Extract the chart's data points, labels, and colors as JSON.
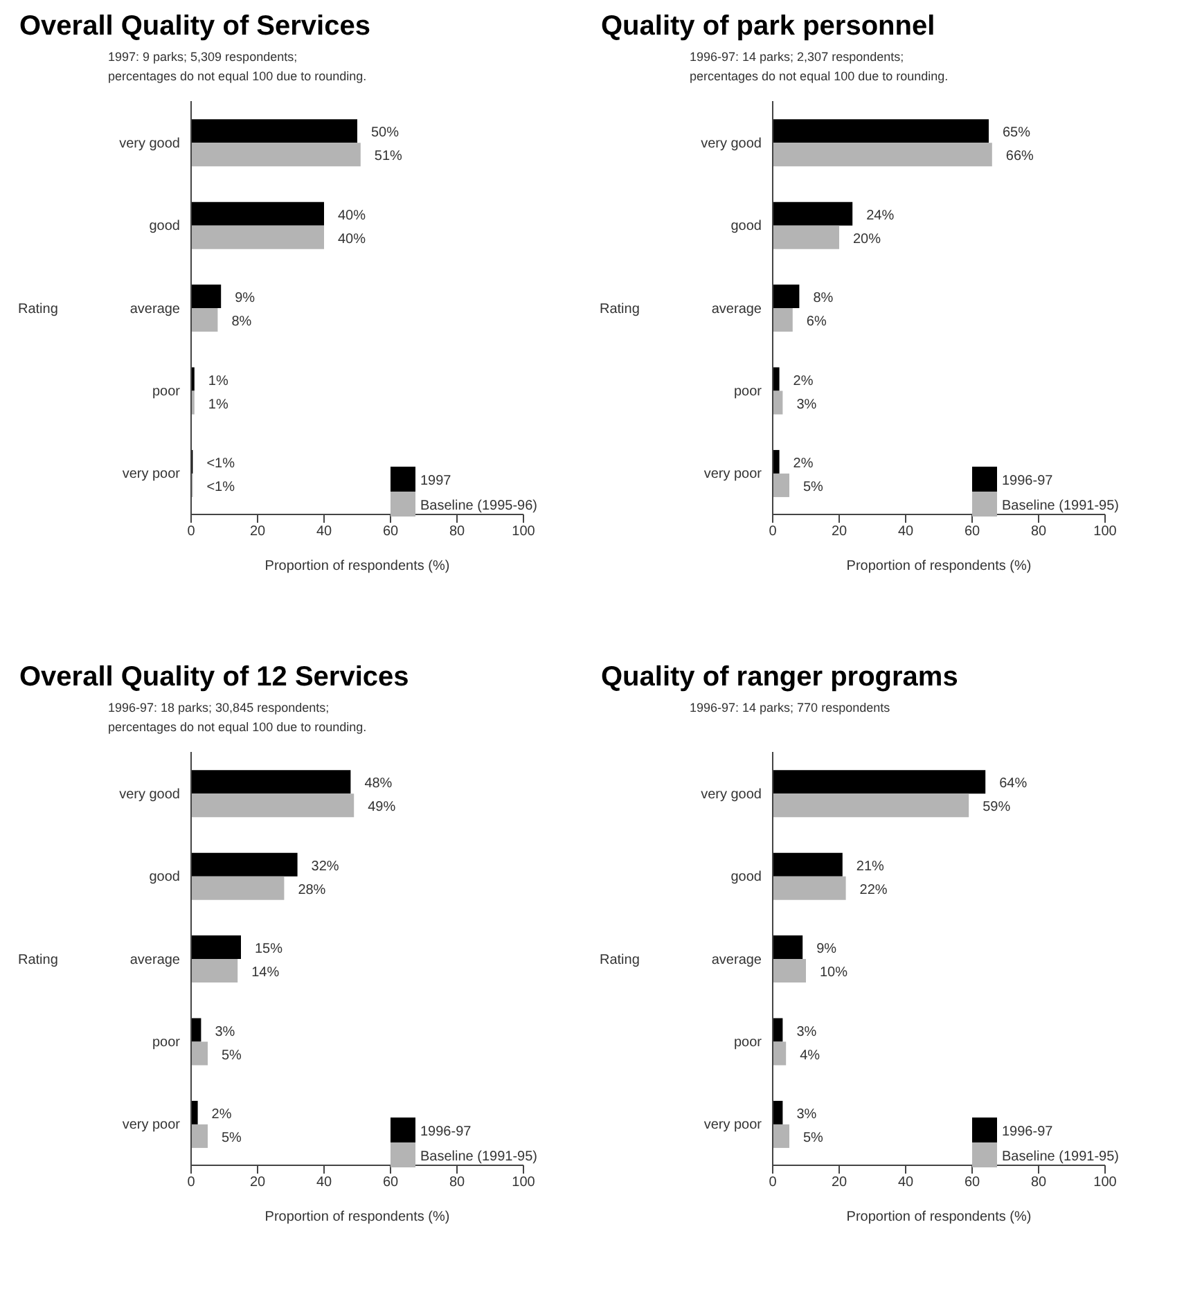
{
  "chart_data": [
    {
      "type": "bar",
      "orientation": "horizontal",
      "title": "Overall Quality of Services",
      "subtitle": "1997:  9 parks; 5,309 respondents;\npercentages do not equal 100 due to rounding.",
      "xlabel": "Proportion of respondents (%)",
      "ylabel": "Rating",
      "categories": [
        "very good",
        "good",
        "average",
        "poor",
        "very poor"
      ],
      "series": [
        {
          "name": "1997",
          "color": "#000000",
          "values": [
            50,
            40,
            9,
            1,
            0.5
          ],
          "value_labels": [
            "50%",
            "40%",
            "9%",
            "1%",
            "<1%"
          ]
        },
        {
          "name": "Baseline (1995-96)",
          "color": "#b4b4b4",
          "values": [
            51,
            40,
            8,
            1,
            0.5
          ],
          "value_labels": [
            "51%",
            "40%",
            "8%",
            "1%",
            "<1%"
          ]
        }
      ],
      "xlim": [
        0,
        100
      ],
      "xticks": [
        0,
        20,
        40,
        60,
        80,
        100
      ],
      "grid": false,
      "legend": "bottom right"
    },
    {
      "type": "bar",
      "orientation": "horizontal",
      "title": "Quality of park personnel",
      "subtitle": "1996-97:  14 parks; 2,307 respondents;\npercentages do not equal 100 due to rounding.",
      "xlabel": "Proportion of respondents (%)",
      "ylabel": "Rating",
      "categories": [
        "very good",
        "good",
        "average",
        "poor",
        "very poor"
      ],
      "series": [
        {
          "name": "1996-97",
          "color": "#000000",
          "values": [
            65,
            24,
            8,
            2,
            2
          ],
          "value_labels": [
            "65%",
            "24%",
            "8%",
            "2%",
            "2%"
          ]
        },
        {
          "name": "Baseline (1991-95)",
          "color": "#b4b4b4",
          "values": [
            66,
            20,
            6,
            3,
            5
          ],
          "value_labels": [
            "66%",
            "20%",
            "6%",
            "3%",
            "5%"
          ]
        }
      ],
      "xlim": [
        0,
        100
      ],
      "xticks": [
        0,
        20,
        40,
        60,
        80,
        100
      ],
      "grid": false,
      "legend": "bottom right"
    },
    {
      "type": "bar",
      "orientation": "horizontal",
      "title": "Overall Quality of 12 Services",
      "subtitle": "1996-97:  18 parks; 30,845 respondents;\npercentages do not equal 100 due to rounding.",
      "xlabel": "Proportion of respondents (%)",
      "ylabel": "Rating",
      "categories": [
        "very good",
        "good",
        "average",
        "poor",
        "very poor"
      ],
      "series": [
        {
          "name": "1996-97",
          "color": "#000000",
          "values": [
            48,
            32,
            15,
            3,
            2
          ],
          "value_labels": [
            "48%",
            "32%",
            "15%",
            "3%",
            "2%"
          ]
        },
        {
          "name": "Baseline (1991-95)",
          "color": "#b4b4b4",
          "values": [
            49,
            28,
            14,
            5,
            5
          ],
          "value_labels": [
            "49%",
            "28%",
            "14%",
            "5%",
            "5%"
          ]
        }
      ],
      "xlim": [
        0,
        100
      ],
      "xticks": [
        0,
        20,
        40,
        60,
        80,
        100
      ],
      "grid": false,
      "legend": "bottom right"
    },
    {
      "type": "bar",
      "orientation": "horizontal",
      "title": "Quality of ranger programs",
      "subtitle": "1996-97:  14 parks; 770 respondents",
      "xlabel": "Proportion of respondents (%)",
      "ylabel": "Rating",
      "categories": [
        "very good",
        "good",
        "average",
        "poor",
        "very poor"
      ],
      "series": [
        {
          "name": "1996-97",
          "color": "#000000",
          "values": [
            64,
            21,
            9,
            3,
            3
          ],
          "value_labels": [
            "64%",
            "21%",
            "9%",
            "3%",
            "3%"
          ]
        },
        {
          "name": "Baseline (1991-95)",
          "color": "#b4b4b4",
          "values": [
            59,
            22,
            10,
            4,
            5
          ],
          "value_labels": [
            "59%",
            "22%",
            "10%",
            "4%",
            "5%"
          ]
        }
      ],
      "xlim": [
        0,
        100
      ],
      "xticks": [
        0,
        20,
        40,
        60,
        80,
        100
      ],
      "grid": false,
      "legend": "bottom right"
    }
  ]
}
